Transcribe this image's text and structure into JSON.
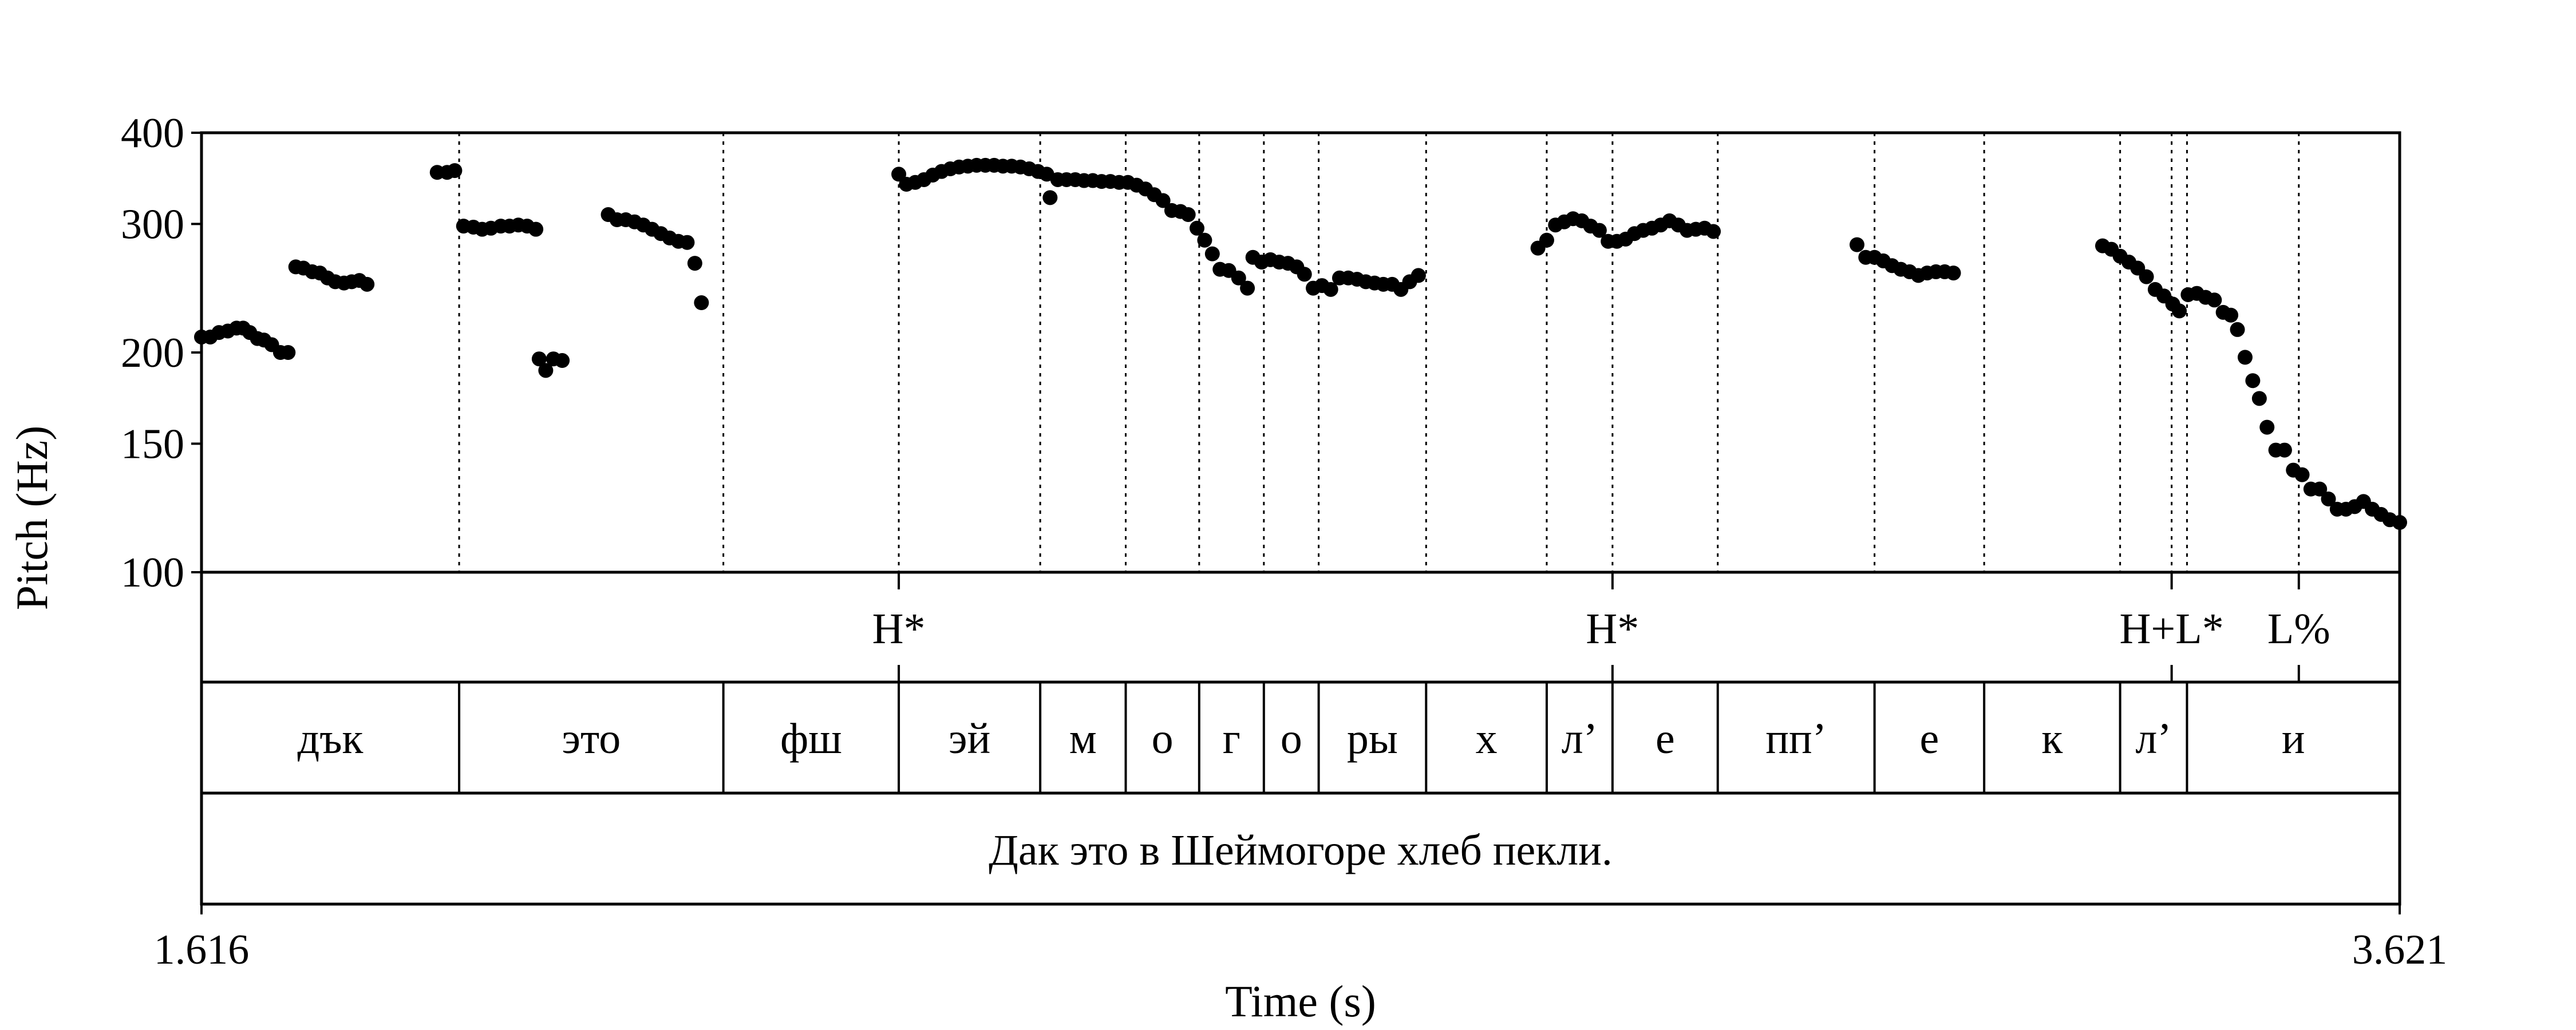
{
  "chart_data": {
    "type": "scatter",
    "title": "",
    "xlabel": "Time (s)",
    "ylabel": "Pitch (Hz)",
    "xlim": [
      1.616,
      3.621
    ],
    "ylim": [
      100,
      400
    ],
    "yscale": "log",
    "x_tick_labels": [
      "1.616",
      "3.621"
    ],
    "y_ticks": [
      100,
      150,
      200,
      300,
      400
    ],
    "y_tick_labels": [
      "100",
      "150",
      "200",
      "300",
      "400"
    ],
    "grid": false,
    "legend": "none",
    "marker_color": "#000000",
    "pitch_points": [
      [
        1.616,
        210
      ],
      [
        1.624,
        210
      ],
      [
        1.632,
        213
      ],
      [
        1.64,
        214
      ],
      [
        1.648,
        216
      ],
      [
        1.654,
        216
      ],
      [
        1.66,
        213
      ],
      [
        1.667,
        209
      ],
      [
        1.673,
        208
      ],
      [
        1.68,
        205
      ],
      [
        1.688,
        200
      ],
      [
        1.695,
        200
      ],
      [
        1.702,
        262
      ],
      [
        1.709,
        261
      ],
      [
        1.717,
        258
      ],
      [
        1.724,
        257
      ],
      [
        1.731,
        253
      ],
      [
        1.738,
        250
      ],
      [
        1.746,
        249
      ],
      [
        1.753,
        250
      ],
      [
        1.76,
        251
      ],
      [
        1.767,
        248
      ],
      [
        1.831,
        353
      ],
      [
        1.84,
        353
      ],
      [
        1.847,
        355
      ],
      [
        1.855,
        298
      ],
      [
        1.864,
        297
      ],
      [
        1.872,
        295
      ],
      [
        1.88,
        296
      ],
      [
        1.889,
        298
      ],
      [
        1.897,
        298
      ],
      [
        1.905,
        299
      ],
      [
        1.913,
        298
      ],
      [
        1.921,
        295
      ],
      [
        1.924,
        196
      ],
      [
        1.93,
        189
      ],
      [
        1.937,
        196
      ],
      [
        1.945,
        195
      ],
      [
        1.987,
        309
      ],
      [
        1.995,
        304
      ],
      [
        2.003,
        304
      ],
      [
        2.011,
        302
      ],
      [
        2.019,
        299
      ],
      [
        2.027,
        295
      ],
      [
        2.035,
        291
      ],
      [
        2.043,
        287
      ],
      [
        2.051,
        284
      ],
      [
        2.059,
        283
      ],
      [
        2.066,
        265
      ],
      [
        2.072,
        234
      ],
      [
        2.252,
        351
      ],
      [
        2.259,
        340
      ],
      [
        2.267,
        342
      ],
      [
        2.275,
        345
      ],
      [
        2.283,
        350
      ],
      [
        2.291,
        354
      ],
      [
        2.299,
        357
      ],
      [
        2.307,
        359
      ],
      [
        2.315,
        360
      ],
      [
        2.323,
        361
      ],
      [
        2.331,
        361
      ],
      [
        2.339,
        361
      ],
      [
        2.347,
        360
      ],
      [
        2.355,
        360
      ],
      [
        2.363,
        359
      ],
      [
        2.371,
        357
      ],
      [
        2.379,
        354
      ],
      [
        2.387,
        351
      ],
      [
        2.39,
        326
      ],
      [
        2.397,
        345
      ],
      [
        2.405,
        345
      ],
      [
        2.413,
        345
      ],
      [
        2.421,
        344
      ],
      [
        2.429,
        344
      ],
      [
        2.437,
        343
      ],
      [
        2.445,
        343
      ],
      [
        2.453,
        342
      ],
      [
        2.461,
        342
      ],
      [
        2.469,
        339
      ],
      [
        2.477,
        335
      ],
      [
        2.485,
        329
      ],
      [
        2.493,
        323
      ],
      [
        2.501,
        313
      ],
      [
        2.509,
        312
      ],
      [
        2.516,
        309
      ],
      [
        2.524,
        296
      ],
      [
        2.531,
        285
      ],
      [
        2.538,
        273
      ],
      [
        2.545,
        260
      ],
      [
        2.553,
        259
      ],
      [
        2.562,
        253
      ],
      [
        2.57,
        245
      ],
      [
        2.575,
        270
      ],
      [
        2.583,
        266
      ],
      [
        2.591,
        268
      ],
      [
        2.599,
        266
      ],
      [
        2.607,
        265
      ],
      [
        2.615,
        262
      ],
      [
        2.622,
        256
      ],
      [
        2.63,
        245
      ],
      [
        2.638,
        247
      ],
      [
        2.646,
        244
      ],
      [
        2.654,
        253
      ],
      [
        2.662,
        253
      ],
      [
        2.67,
        252
      ],
      [
        2.678,
        250
      ],
      [
        2.686,
        249
      ],
      [
        2.694,
        248
      ],
      [
        2.702,
        248
      ],
      [
        2.71,
        244
      ],
      [
        2.718,
        250
      ],
      [
        2.726,
        255
      ],
      [
        2.835,
        278
      ],
      [
        2.843,
        285
      ],
      [
        2.851,
        299
      ],
      [
        2.859,
        302
      ],
      [
        2.867,
        305
      ],
      [
        2.875,
        303
      ],
      [
        2.883,
        298
      ],
      [
        2.891,
        294
      ],
      [
        2.899,
        284
      ],
      [
        2.907,
        284
      ],
      [
        2.915,
        286
      ],
      [
        2.923,
        291
      ],
      [
        2.931,
        294
      ],
      [
        2.939,
        296
      ],
      [
        2.947,
        299
      ],
      [
        2.955,
        303
      ],
      [
        2.963,
        299
      ],
      [
        2.971,
        294
      ],
      [
        2.979,
        295
      ],
      [
        2.987,
        296
      ],
      [
        2.995,
        293
      ],
      [
        3.126,
        281
      ],
      [
        3.134,
        270
      ],
      [
        3.142,
        270
      ],
      [
        3.15,
        267
      ],
      [
        3.158,
        263
      ],
      [
        3.166,
        260
      ],
      [
        3.174,
        258
      ],
      [
        3.182,
        255
      ],
      [
        3.19,
        257
      ],
      [
        3.198,
        258
      ],
      [
        3.206,
        258
      ],
      [
        3.214,
        257
      ],
      [
        3.35,
        280
      ],
      [
        3.358,
        277
      ],
      [
        3.366,
        271
      ],
      [
        3.374,
        266
      ],
      [
        3.382,
        261
      ],
      [
        3.39,
        254
      ],
      [
        3.398,
        244
      ],
      [
        3.406,
        239
      ],
      [
        3.414,
        233
      ],
      [
        3.42,
        228
      ],
      [
        3.428,
        240
      ],
      [
        3.436,
        241
      ],
      [
        3.444,
        238
      ],
      [
        3.452,
        236
      ],
      [
        3.46,
        227
      ],
      [
        3.467,
        225
      ],
      [
        3.473,
        215
      ],
      [
        3.48,
        197
      ],
      [
        3.487,
        183
      ],
      [
        3.493,
        173
      ],
      [
        3.5,
        158
      ],
      [
        3.508,
        147
      ],
      [
        3.516,
        147
      ],
      [
        3.524,
        138
      ],
      [
        3.532,
        136
      ],
      [
        3.54,
        130
      ],
      [
        3.548,
        130
      ],
      [
        3.556,
        126
      ],
      [
        3.564,
        122
      ],
      [
        3.572,
        122
      ],
      [
        3.58,
        123
      ],
      [
        3.588,
        125
      ],
      [
        3.596,
        122
      ],
      [
        3.604,
        120
      ],
      [
        3.612,
        118
      ],
      [
        3.621,
        117
      ]
    ]
  },
  "tiers": {
    "tones": {
      "boundaries": [
        2.252,
        2.903,
        3.413,
        3.529
      ],
      "labels": [
        {
          "t": 2.252,
          "text": "H*"
        },
        {
          "t": 2.903,
          "text": "H*"
        },
        {
          "t": 3.413,
          "text": "H+L*"
        },
        {
          "t": 3.529,
          "text": "L%"
        }
      ]
    },
    "segments": [
      {
        "start": 1.616,
        "end": 1.851,
        "text": "дък"
      },
      {
        "start": 1.851,
        "end": 2.092,
        "text": "это"
      },
      {
        "start": 2.092,
        "end": 2.252,
        "text": "фш"
      },
      {
        "start": 2.252,
        "end": 2.381,
        "text": "эй"
      },
      {
        "start": 2.381,
        "end": 2.459,
        "text": "м"
      },
      {
        "start": 2.459,
        "end": 2.526,
        "text": "о"
      },
      {
        "start": 2.526,
        "end": 2.585,
        "text": "г"
      },
      {
        "start": 2.585,
        "end": 2.635,
        "text": "о"
      },
      {
        "start": 2.635,
        "end": 2.733,
        "text": "ры"
      },
      {
        "start": 2.733,
        "end": 2.843,
        "text": "х"
      },
      {
        "start": 2.843,
        "end": 2.903,
        "text": "л’"
      },
      {
        "start": 2.903,
        "end": 2.999,
        "text": "е"
      },
      {
        "start": 2.999,
        "end": 3.142,
        "text": "пп’"
      },
      {
        "start": 3.142,
        "end": 3.242,
        "text": "е"
      },
      {
        "start": 3.242,
        "end": 3.366,
        "text": "к"
      },
      {
        "start": 3.366,
        "end": 3.427,
        "text": "л’"
      },
      {
        "start": 3.427,
        "end": 3.621,
        "text": "и"
      }
    ],
    "sentence": "Дак это в Шеймогоре хлеб пекли."
  }
}
